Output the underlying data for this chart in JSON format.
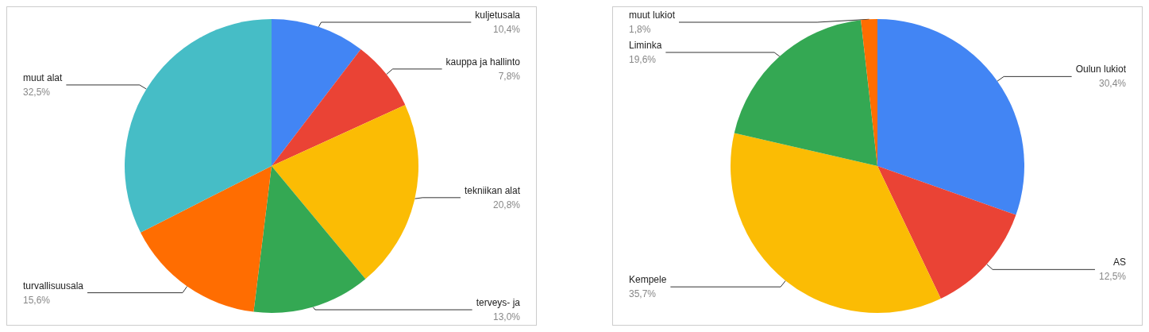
{
  "chart_data": [
    {
      "type": "pie",
      "categories": [
        "kuljetusala",
        "kauppa ja hallinto",
        "tekniikan alat",
        "terveys- ja",
        "turvallisuusala",
        "muut alat"
      ],
      "values": [
        10.4,
        7.8,
        20.8,
        13.0,
        15.6,
        32.5
      ],
      "value_labels": [
        "10,4%",
        "7,8%",
        "20,8%",
        "13,0%",
        "15,6%",
        "32,5%"
      ],
      "colors": [
        "#4285f4",
        "#ea4335",
        "#fbbc04",
        "#34a853",
        "#ff6d01",
        "#46bdc6"
      ],
      "legend": false
    },
    {
      "type": "pie",
      "categories": [
        "Oulun lukiot",
        "AS",
        "Kempele",
        "Liminka",
        "muut lukiot"
      ],
      "values": [
        30.4,
        12.5,
        35.7,
        19.6,
        1.8
      ],
      "value_labels": [
        "30,4%",
        "12,5%",
        "35,7%",
        "19,6%",
        "1,8%"
      ],
      "colors": [
        "#4285f4",
        "#ea4335",
        "#fbbc04",
        "#34a853",
        "#ff6d01"
      ],
      "legend": false
    }
  ]
}
